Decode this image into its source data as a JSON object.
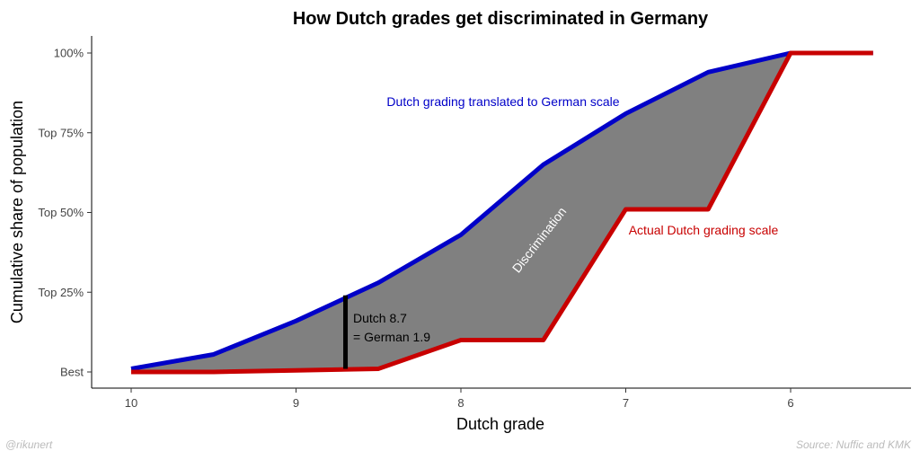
{
  "chart_data": {
    "type": "area",
    "title": "How Dutch grades get discriminated in Germany",
    "xlabel": "Dutch grade",
    "ylabel": "Cumulative share of population",
    "x_reversed": true,
    "xlim": [
      10,
      5.5
    ],
    "ylim": [
      0,
      100
    ],
    "x_ticks": [
      10,
      9,
      8,
      7,
      6
    ],
    "y_ticks": [
      {
        "value": 0,
        "label": "Best"
      },
      {
        "value": 25,
        "label": "Top 25%"
      },
      {
        "value": 50,
        "label": "Top 50%"
      },
      {
        "value": 75,
        "label": "Top 75%"
      },
      {
        "value": 100,
        "label": "100%"
      }
    ],
    "fill_between_label": "Discrimination",
    "fill_color": "#808080",
    "series": [
      {
        "name": "Dutch grading translated to German scale",
        "color": "#0000c8",
        "x": [
          10,
          9.5,
          9,
          8.5,
          8,
          7.5,
          7,
          6.5,
          6,
          5.5
        ],
        "y": [
          1,
          5.5,
          16,
          28,
          43,
          65,
          81,
          94,
          100,
          100
        ]
      },
      {
        "name": "Actual Dutch grading scale",
        "color": "#c80000",
        "x": [
          10,
          9.5,
          9,
          8.5,
          8,
          7.5,
          7,
          6.5,
          6,
          5.5
        ],
        "y": [
          0,
          0,
          0.5,
          1,
          10,
          10,
          51,
          51,
          100,
          100
        ]
      }
    ],
    "annotations": [
      {
        "type": "vline",
        "x": 8.7,
        "y_from": 1,
        "y_to": 24,
        "color": "#000000",
        "lines": [
          "Dutch 8.7",
          "= German 1.9"
        ]
      }
    ],
    "grid": false,
    "legend": "none"
  },
  "captions": {
    "left": "@rikunert",
    "right": "Source: Nuffic and KMK"
  }
}
